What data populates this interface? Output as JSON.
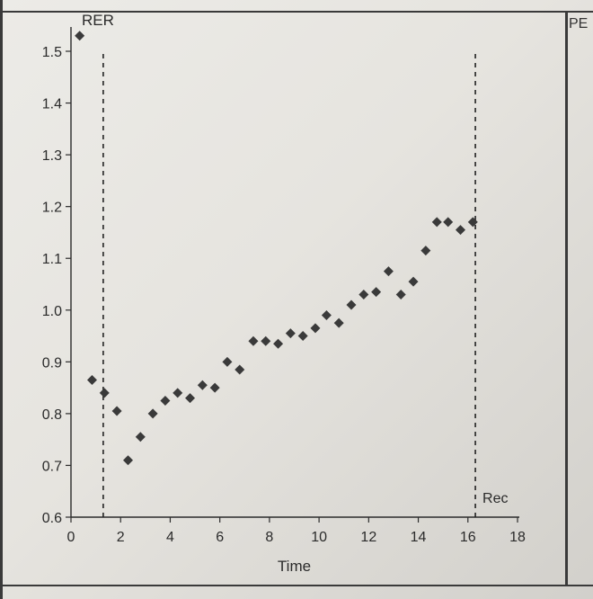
{
  "edge_label": "PE",
  "chart_data": {
    "type": "scatter",
    "xlabel": "Time",
    "ylabel": "RER",
    "xlim": [
      0,
      18
    ],
    "ylim": [
      0.6,
      1.5
    ],
    "xticks": [
      0,
      2,
      4,
      6,
      8,
      10,
      12,
      14,
      16,
      18
    ],
    "yticks": [
      0.6,
      0.7,
      0.8,
      0.9,
      1.0,
      1.1,
      1.2,
      1.3,
      1.4,
      1.5
    ],
    "xtick_labels": [
      "0",
      "2",
      "4",
      "6",
      "8",
      "10",
      "12",
      "14",
      "16",
      "18"
    ],
    "ytick_labels": [
      "0.6",
      "0.7",
      "0.8",
      "0.9",
      "1.0",
      "1.1",
      "1.2",
      "1.3",
      "1.4",
      "1.5"
    ],
    "grid": false,
    "marker": "diamond",
    "reference_lines": [
      {
        "x": 1.3,
        "label": ""
      },
      {
        "x": 16.3,
        "label": "Rec"
      }
    ],
    "points": [
      {
        "x": 0.35,
        "y": 1.53
      },
      {
        "x": 0.85,
        "y": 0.865
      },
      {
        "x": 1.35,
        "y": 0.84
      },
      {
        "x": 1.85,
        "y": 0.805
      },
      {
        "x": 2.3,
        "y": 0.71
      },
      {
        "x": 2.8,
        "y": 0.755
      },
      {
        "x": 3.3,
        "y": 0.8
      },
      {
        "x": 3.8,
        "y": 0.825
      },
      {
        "x": 4.3,
        "y": 0.84
      },
      {
        "x": 4.8,
        "y": 0.83
      },
      {
        "x": 5.3,
        "y": 0.855
      },
      {
        "x": 5.8,
        "y": 0.85
      },
      {
        "x": 6.3,
        "y": 0.9
      },
      {
        "x": 6.8,
        "y": 0.885
      },
      {
        "x": 7.35,
        "y": 0.94
      },
      {
        "x": 7.85,
        "y": 0.94
      },
      {
        "x": 8.35,
        "y": 0.935
      },
      {
        "x": 8.85,
        "y": 0.955
      },
      {
        "x": 9.35,
        "y": 0.95
      },
      {
        "x": 9.85,
        "y": 0.965
      },
      {
        "x": 10.3,
        "y": 0.99
      },
      {
        "x": 10.8,
        "y": 0.975
      },
      {
        "x": 11.3,
        "y": 1.01
      },
      {
        "x": 11.8,
        "y": 1.03
      },
      {
        "x": 12.3,
        "y": 1.035
      },
      {
        "x": 12.8,
        "y": 1.075
      },
      {
        "x": 13.3,
        "y": 1.03
      },
      {
        "x": 13.8,
        "y": 1.055
      },
      {
        "x": 14.3,
        "y": 1.115
      },
      {
        "x": 14.75,
        "y": 1.17
      },
      {
        "x": 15.2,
        "y": 1.17
      },
      {
        "x": 15.7,
        "y": 1.155
      },
      {
        "x": 16.2,
        "y": 1.17
      }
    ]
  }
}
